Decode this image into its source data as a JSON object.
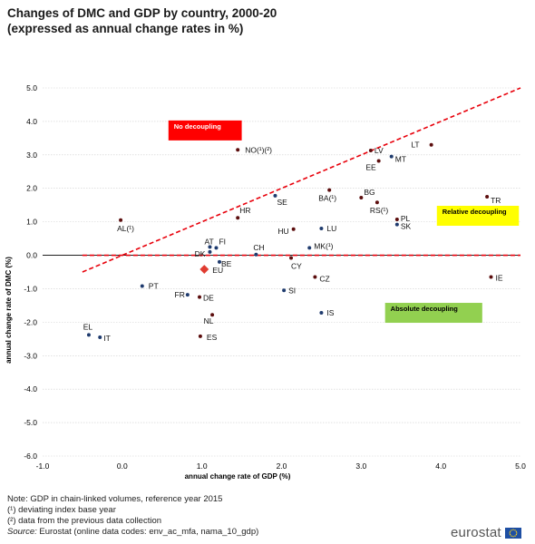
{
  "title_line1": "Changes of DMC and GDP by country, 2000-20",
  "title_line2": "(expressed as annual change rates in %)",
  "notes": {
    "note1": "Note: GDP in chain-linked volumes, reference year 2015",
    "note2": "(¹) deviating index base year",
    "note3": "(²) data from the previous data collection",
    "source_label": "Source:",
    "source_text": " Eurostat (online data codes: env_ac_mfa, nama_10_gdp)"
  },
  "logo_text": "eurostat",
  "chart_data": {
    "type": "scatter",
    "xlabel": "annual change rate of GDP (%)",
    "ylabel": "annual change rate of DMC (%)",
    "xlim": [
      -1.0,
      5.0
    ],
    "ylim": [
      -6.0,
      5.0
    ],
    "xticks": [
      "-1.0",
      "0.0",
      "1.0",
      "2.0",
      "3.0",
      "4.0",
      "5.0"
    ],
    "yticks": [
      "5.0",
      "4.0",
      "3.0",
      "2.0",
      "1.0",
      "0.0",
      "-1.0",
      "-2.0",
      "-3.0",
      "-4.0",
      "-5.0",
      "-6.0"
    ],
    "grid": true,
    "regions": [
      {
        "label": "No decoupling",
        "color": "#ff0000",
        "text_color": "#ffffff"
      },
      {
        "label": "Relative decoupling",
        "color": "#ffff00",
        "text_color": "#000000"
      },
      {
        "label": "Absolute decoupling",
        "color": "#92d050",
        "text_color": "#000000"
      }
    ],
    "colors": {
      "point_dark": "#5c0e0e",
      "point_blue": "#1f3b6e",
      "eu": "#e03c31",
      "line": "#e8000b"
    },
    "points": [
      {
        "label": "NO(¹)(²)",
        "x": 1.45,
        "y": 3.15,
        "color": "dark"
      },
      {
        "label": "LV",
        "x": 3.12,
        "y": 3.13,
        "color": "dark"
      },
      {
        "label": "LT",
        "x": 3.88,
        "y": 3.3,
        "color": "dark"
      },
      {
        "label": "EE",
        "x": 3.22,
        "y": 2.82,
        "color": "dark"
      },
      {
        "label": "MT",
        "x": 3.38,
        "y": 2.95,
        "color": "blue"
      },
      {
        "label": "BG",
        "x": 3.0,
        "y": 1.72,
        "color": "dark"
      },
      {
        "label": "BA(¹)",
        "x": 2.6,
        "y": 1.95,
        "color": "dark"
      },
      {
        "label": "SE",
        "x": 1.92,
        "y": 1.78,
        "color": "blue"
      },
      {
        "label": "RS(¹)",
        "x": 3.2,
        "y": 1.58,
        "color": "dark"
      },
      {
        "label": "TR",
        "x": 4.58,
        "y": 1.75,
        "color": "dark"
      },
      {
        "label": "PL",
        "x": 3.45,
        "y": 1.07,
        "color": "dark"
      },
      {
        "label": "SK",
        "x": 3.45,
        "y": 0.92,
        "color": "blue"
      },
      {
        "label": "HR",
        "x": 1.45,
        "y": 1.12,
        "color": "dark"
      },
      {
        "label": "AL(¹)",
        "x": -0.02,
        "y": 1.05,
        "color": "dark"
      },
      {
        "label": "HU",
        "x": 2.15,
        "y": 0.78,
        "color": "dark"
      },
      {
        "label": "LU",
        "x": 2.5,
        "y": 0.8,
        "color": "blue"
      },
      {
        "label": "AT",
        "x": 1.1,
        "y": 0.25,
        "color": "blue"
      },
      {
        "label": "FI",
        "x": 1.18,
        "y": 0.22,
        "color": "blue"
      },
      {
        "label": "DK",
        "x": 1.1,
        "y": 0.1,
        "color": "blue"
      },
      {
        "label": "CH",
        "x": 1.68,
        "y": 0.02,
        "color": "blue"
      },
      {
        "label": "MK(¹)",
        "x": 2.35,
        "y": 0.22,
        "color": "blue"
      },
      {
        "label": "CY",
        "x": 2.12,
        "y": -0.08,
        "color": "dark"
      },
      {
        "label": "BE",
        "x": 1.22,
        "y": -0.2,
        "color": "blue"
      },
      {
        "label": "EU",
        "x": 1.03,
        "y": -0.42,
        "color": "eu"
      },
      {
        "label": "CZ",
        "x": 2.42,
        "y": -0.65,
        "color": "dark"
      },
      {
        "label": "IE",
        "x": 4.63,
        "y": -0.65,
        "color": "dark"
      },
      {
        "label": "PT",
        "x": 0.25,
        "y": -0.92,
        "color": "blue"
      },
      {
        "label": "FR",
        "x": 0.82,
        "y": -1.18,
        "color": "blue"
      },
      {
        "label": "DE",
        "x": 0.97,
        "y": -1.25,
        "color": "dark"
      },
      {
        "label": "SI",
        "x": 2.03,
        "y": -1.05,
        "color": "blue"
      },
      {
        "label": "IS",
        "x": 2.5,
        "y": -1.72,
        "color": "blue"
      },
      {
        "label": "NL",
        "x": 1.13,
        "y": -1.78,
        "color": "dark"
      },
      {
        "label": "EL",
        "x": -0.42,
        "y": -2.38,
        "color": "blue"
      },
      {
        "label": "IT",
        "x": -0.28,
        "y": -2.45,
        "color": "blue"
      },
      {
        "label": "ES",
        "x": 0.98,
        "y": -2.42,
        "color": "dark"
      }
    ],
    "diagonal": {
      "from": [
        -0.5,
        -0.5
      ],
      "to": [
        5.0,
        5.0
      ]
    },
    "horizontal": {
      "from": [
        -0.5,
        0.0
      ],
      "to": [
        5.0,
        0.0
      ]
    }
  }
}
